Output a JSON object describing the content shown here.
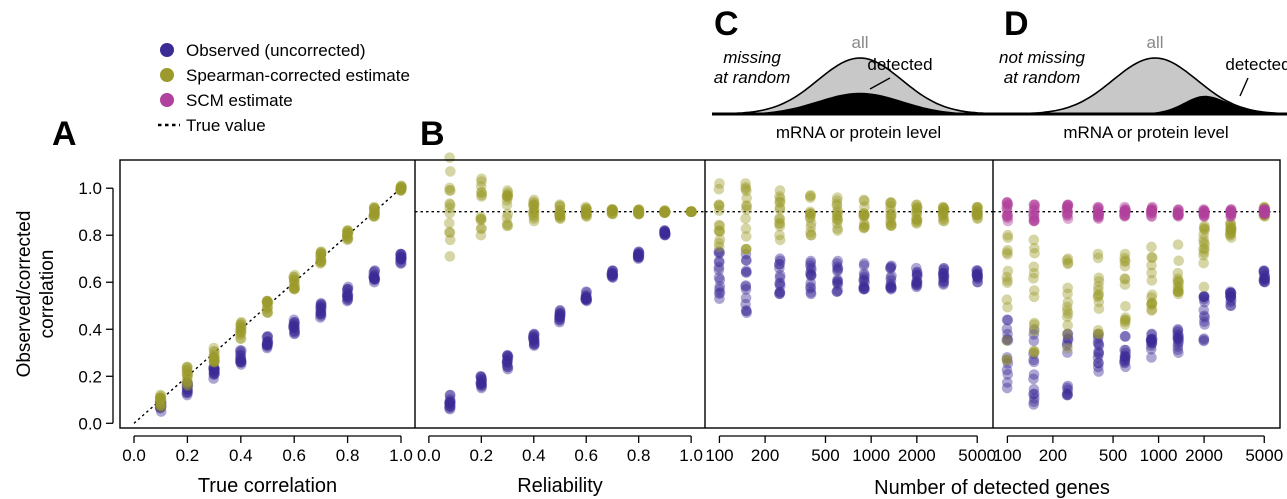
{
  "colors": {
    "observed": "#3b2b95",
    "spearman": "#9c9a2c",
    "scm": "#b0419c",
    "dist_fill": "#c8c8c8",
    "detected_fill": "#000000"
  },
  "legend": {
    "items": [
      {
        "label": "Observed (uncorrected)",
        "color": "#3b2b95",
        "kind": "dot"
      },
      {
        "label": "Spearman-corrected estimate",
        "color": "#9c9a2c",
        "kind": "dot"
      },
      {
        "label": "SCM estimate",
        "color": "#b0419c",
        "kind": "dot"
      },
      {
        "label": "True value",
        "color": "#000000",
        "kind": "dash"
      }
    ]
  },
  "shared": {
    "ylabel_lines": [
      "Observed/corrected",
      "correlation"
    ],
    "xlabel_cd": "Number of detected genes",
    "ylim": [
      -0.02,
      1.12
    ],
    "yticks": [
      "0.0",
      "0.2",
      "0.4",
      "0.6",
      "0.8",
      "1.0"
    ]
  },
  "chart_data": [
    {
      "panel": "A",
      "type": "scatter",
      "xlabel": "True correlation",
      "xscale": "linear",
      "xlim": [
        -0.03,
        1.03
      ],
      "xticks": [
        "0.0",
        "0.2",
        "0.4",
        "0.6",
        "0.8",
        "1.0"
      ],
      "reference_line": {
        "type": "diagonal",
        "from": [
          0,
          0
        ],
        "to": [
          1,
          1
        ]
      },
      "x": [
        0.1,
        0.2,
        0.3,
        0.4,
        0.5,
        0.6,
        0.7,
        0.8,
        0.9,
        1.0
      ],
      "series": [
        {
          "name": "Observed (uncorrected)",
          "ymin": [
            0.05,
            0.12,
            0.19,
            0.25,
            0.32,
            0.38,
            0.45,
            0.52,
            0.6,
            0.68
          ],
          "ymax": [
            0.09,
            0.17,
            0.24,
            0.31,
            0.37,
            0.44,
            0.51,
            0.58,
            0.65,
            0.72
          ]
        },
        {
          "name": "Spearman-corrected estimate",
          "ymin": [
            0.07,
            0.16,
            0.26,
            0.36,
            0.47,
            0.57,
            0.68,
            0.78,
            0.88,
            0.99
          ],
          "ymax": [
            0.12,
            0.24,
            0.32,
            0.43,
            0.52,
            0.63,
            0.73,
            0.82,
            0.92,
            1.01
          ]
        }
      ]
    },
    {
      "panel": "B",
      "type": "scatter",
      "xlabel": "Reliability",
      "xscale": "linear",
      "xlim": [
        -0.03,
        1.03
      ],
      "xticks": [
        "0.0",
        "0.2",
        "0.4",
        "0.6",
        "0.8",
        "1.0"
      ],
      "reference_line": {
        "type": "horizontal",
        "y": 0.9
      },
      "x": [
        0.08,
        0.2,
        0.3,
        0.4,
        0.5,
        0.6,
        0.7,
        0.8,
        0.9,
        1.0
      ],
      "series": [
        {
          "name": "Observed (uncorrected)",
          "ymin": [
            0.06,
            0.15,
            0.23,
            0.33,
            0.43,
            0.52,
            0.62,
            0.7,
            0.8,
            null
          ],
          "ymax": [
            0.12,
            0.2,
            0.29,
            0.38,
            0.48,
            0.56,
            0.65,
            0.73,
            0.82,
            null
          ]
        },
        {
          "name": "Spearman-corrected estimate",
          "ymin": [
            0.71,
            0.8,
            0.84,
            0.86,
            0.87,
            0.88,
            0.89,
            0.89,
            0.895,
            0.9
          ],
          "ymax": [
            1.13,
            1.04,
            0.99,
            0.95,
            0.93,
            0.92,
            0.91,
            0.91,
            0.905,
            0.9
          ]
        }
      ]
    },
    {
      "panel": "C",
      "type": "scatter",
      "inset_title": "C",
      "inset_labels": {
        "left": [
          "missing",
          "at random"
        ],
        "all": "all",
        "detected": "detected",
        "axis": "mRNA or protein level"
      },
      "xscale": "log",
      "xlim": [
        88,
        5800
      ],
      "xticks": [
        100,
        200,
        500,
        1000,
        2000,
        5000
      ],
      "reference_line": {
        "type": "horizontal",
        "y": 0.9
      },
      "x": [
        100,
        150,
        250,
        400,
        600,
        900,
        1350,
        2000,
        3000,
        5000
      ],
      "series": [
        {
          "name": "Observed (uncorrected)",
          "ymin": [
            0.53,
            0.47,
            0.55,
            0.55,
            0.56,
            0.57,
            0.57,
            0.58,
            0.59,
            0.6
          ],
          "ymax": [
            0.73,
            0.72,
            0.7,
            0.69,
            0.69,
            0.68,
            0.67,
            0.66,
            0.66,
            0.65
          ]
        },
        {
          "name": "Spearman-corrected estimate",
          "ymin": [
            0.75,
            0.74,
            0.78,
            0.8,
            0.82,
            0.83,
            0.84,
            0.85,
            0.86,
            0.87
          ],
          "ymax": [
            1.02,
            1.02,
            0.99,
            0.97,
            0.96,
            0.95,
            0.94,
            0.93,
            0.92,
            0.92
          ]
        }
      ]
    },
    {
      "panel": "D",
      "type": "scatter",
      "inset_title": "D",
      "inset_labels": {
        "left": [
          "not missing",
          "at random"
        ],
        "all": "all",
        "detected": "detected",
        "axis": "mRNA or protein level"
      },
      "xscale": "log",
      "xlim": [
        88,
        5800
      ],
      "xticks": [
        100,
        200,
        500,
        1000,
        2000,
        5000
      ],
      "reference_line": {
        "type": "horizontal",
        "y": 0.9
      },
      "x": [
        100,
        150,
        250,
        400,
        600,
        900,
        1350,
        2000,
        3000,
        5000
      ],
      "series": [
        {
          "name": "Observed (uncorrected)",
          "ymin": [
            0.15,
            0.08,
            0.12,
            0.22,
            0.24,
            0.28,
            0.3,
            0.35,
            0.5,
            0.6
          ],
          "ymax": [
            0.44,
            0.4,
            0.38,
            0.38,
            0.37,
            0.38,
            0.4,
            0.54,
            0.56,
            0.65
          ]
        },
        {
          "name": "Spearman-corrected estimate",
          "ymin": [
            0.27,
            0.3,
            0.32,
            0.38,
            0.42,
            0.48,
            0.55,
            0.58,
            0.79,
            0.88
          ],
          "ymax": [
            0.8,
            0.78,
            0.7,
            0.72,
            0.72,
            0.75,
            0.76,
            0.84,
            0.85,
            0.92
          ]
        },
        {
          "name": "SCM estimate",
          "ymin": [
            0.86,
            0.86,
            0.87,
            0.87,
            0.88,
            0.88,
            0.88,
            0.88,
            0.88,
            0.89
          ],
          "ymax": [
            0.94,
            0.93,
            0.93,
            0.92,
            0.92,
            0.92,
            0.91,
            0.91,
            0.91,
            0.91
          ]
        }
      ]
    }
  ]
}
